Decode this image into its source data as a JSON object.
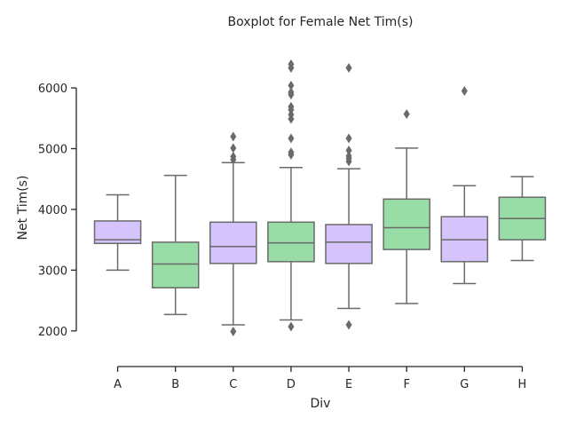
{
  "chart_data": {
    "type": "boxplot",
    "title": "Boxplot for Female Net Tim(s)",
    "xlabel": "Div",
    "ylabel": "Net Tim(s)",
    "ylim": [
      1530,
      6600
    ],
    "yticks": [
      2000,
      3000,
      4000,
      5000,
      6000
    ],
    "grid": false,
    "legend": "none",
    "colors": {
      "purple": "#d4c4fb",
      "green": "#98dca6",
      "line": "#6a6a6a"
    },
    "categories": [
      "A",
      "B",
      "C",
      "D",
      "E",
      "F",
      "G",
      "H"
    ],
    "boxes": [
      {
        "label": "A",
        "color": "purple",
        "whisker_low": 3000,
        "q1": 3440,
        "median": 3500,
        "q3": 3810,
        "whisker_high": 4240,
        "outliers": []
      },
      {
        "label": "B",
        "color": "green",
        "whisker_low": 2270,
        "q1": 2710,
        "median": 3100,
        "q3": 3460,
        "whisker_high": 4560,
        "outliers": []
      },
      {
        "label": "C",
        "color": "purple",
        "whisker_low": 2100,
        "q1": 3110,
        "median": 3390,
        "q3": 3790,
        "whisker_high": 4770,
        "outliers": [
          1990,
          4820,
          4870,
          5010,
          5200
        ]
      },
      {
        "label": "D",
        "color": "green",
        "whisker_low": 2180,
        "q1": 3140,
        "median": 3450,
        "q3": 3790,
        "whisker_high": 4690,
        "outliers": [
          2070,
          4900,
          4940,
          5170,
          5490,
          5560,
          5640,
          5690,
          5890,
          5930,
          6040,
          6330,
          6390
        ]
      },
      {
        "label": "E",
        "color": "purple",
        "whisker_low": 2370,
        "q1": 3110,
        "median": 3460,
        "q3": 3750,
        "whisker_high": 4670,
        "outliers": [
          2100,
          4790,
          4840,
          4880,
          4970,
          5170,
          6330
        ]
      },
      {
        "label": "F",
        "color": "green",
        "whisker_low": 2450,
        "q1": 3340,
        "median": 3700,
        "q3": 4170,
        "whisker_high": 5010,
        "outliers": [
          5570
        ]
      },
      {
        "label": "G",
        "color": "purple",
        "whisker_low": 2780,
        "q1": 3140,
        "median": 3500,
        "q3": 3880,
        "whisker_high": 4390,
        "outliers": [
          5950
        ]
      },
      {
        "label": "H",
        "color": "green",
        "whisker_low": 3160,
        "q1": 3500,
        "median": 3850,
        "q3": 4200,
        "whisker_high": 4540,
        "outliers": []
      }
    ]
  }
}
